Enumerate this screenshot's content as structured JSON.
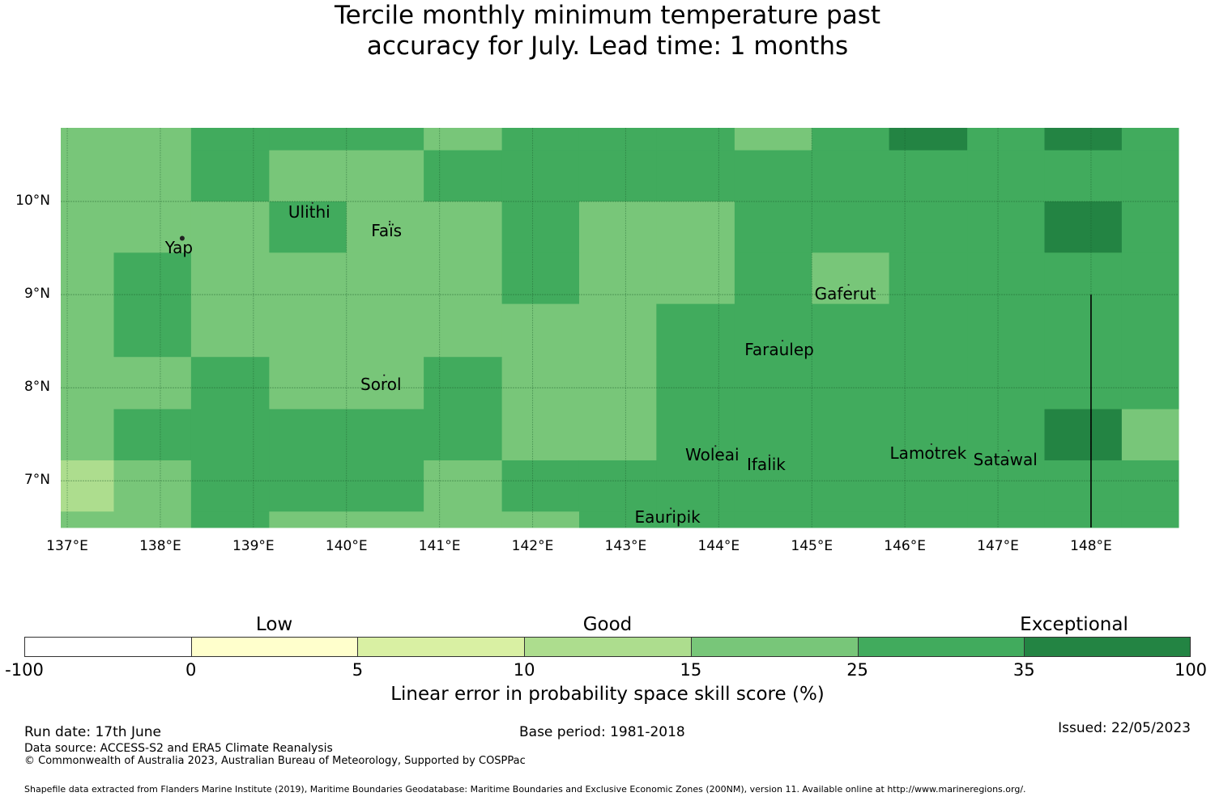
{
  "title": {
    "line1": "Tercile monthly minimum temperature past",
    "line2": "accuracy for July. Lead time: 1 months"
  },
  "map": {
    "lon_range": [
      137,
      149
    ],
    "lat_range": [
      6.5,
      10.8
    ],
    "x_ticks": [
      "137°E",
      "138°E",
      "139°E",
      "140°E",
      "141°E",
      "142°E",
      "143°E",
      "144°E",
      "145°E",
      "146°E",
      "147°E",
      "148°E"
    ],
    "y_ticks": [
      "10°N",
      "9°N",
      "8°N",
      "7°N"
    ],
    "cell_columns_lon_edges": [
      137.0,
      137.5,
      138.33,
      139.17,
      140.0,
      140.83,
      141.67,
      142.5,
      143.33,
      144.17,
      145.0,
      145.83,
      146.67,
      147.5,
      148.33,
      149.0
    ],
    "cell_rows_lat_edges_top_down": [
      10.8,
      10.55,
      10.0,
      9.45,
      8.9,
      8.33,
      7.77,
      7.22,
      6.67,
      6.5
    ],
    "cell_classes_rows_top_down": [
      [
        4,
        4,
        5,
        5,
        5,
        4,
        5,
        5,
        5,
        4,
        5,
        6,
        5,
        6,
        5
      ],
      [
        4,
        4,
        5,
        4,
        4,
        5,
        5,
        5,
        5,
        5,
        5,
        5,
        5,
        5,
        5
      ],
      [
        4,
        4,
        4,
        5,
        4,
        4,
        5,
        4,
        4,
        5,
        5,
        5,
        5,
        6,
        5
      ],
      [
        4,
        5,
        4,
        4,
        4,
        4,
        5,
        4,
        4,
        5,
        4,
        5,
        5,
        5,
        5
      ],
      [
        4,
        5,
        4,
        4,
        4,
        4,
        4,
        4,
        5,
        5,
        5,
        5,
        5,
        5,
        5
      ],
      [
        4,
        4,
        5,
        4,
        4,
        5,
        4,
        4,
        5,
        5,
        5,
        5,
        5,
        5,
        5
      ],
      [
        4,
        5,
        5,
        5,
        5,
        5,
        4,
        4,
        5,
        5,
        5,
        5,
        5,
        6,
        4
      ],
      [
        3,
        4,
        5,
        5,
        5,
        4,
        5,
        5,
        5,
        5,
        5,
        5,
        5,
        5,
        5
      ],
      [
        4,
        4,
        5,
        4,
        4,
        4,
        4,
        5,
        5,
        5,
        5,
        5,
        5,
        5,
        5
      ]
    ],
    "islands": [
      {
        "name": "Ulithi",
        "lon": 139.6,
        "lat": 9.88
      },
      {
        "name": "Faïs",
        "lon": 140.43,
        "lat": 9.68
      },
      {
        "name": "Yap",
        "lon": 138.2,
        "lat": 9.5
      },
      {
        "name": "Gaferut",
        "lon": 145.36,
        "lat": 9.0
      },
      {
        "name": "Faraulep",
        "lon": 144.65,
        "lat": 8.4
      },
      {
        "name": "Sorol",
        "lon": 140.37,
        "lat": 8.03
      },
      {
        "name": "Woleai",
        "lon": 143.93,
        "lat": 7.27
      },
      {
        "name": "Ifalik",
        "lon": 144.51,
        "lat": 7.17
      },
      {
        "name": "Lamotrek",
        "lon": 146.25,
        "lat": 7.29
      },
      {
        "name": "Satawal",
        "lon": 147.08,
        "lat": 7.22
      },
      {
        "name": "Eauripik",
        "lon": 143.45,
        "lat": 6.6
      }
    ],
    "boundary_line_lon": 148.0,
    "boundary_line_lat_range": [
      6.5,
      9.0
    ]
  },
  "colorbar": {
    "categories": [
      {
        "label": "Low",
        "center_value": "0-5"
      },
      {
        "label": "Good",
        "center_value": "10-15"
      },
      {
        "label": "Exceptional",
        "center_value": "35-100"
      }
    ],
    "bins": [
      {
        "from": "-100",
        "to": "0",
        "color": "#ffffff"
      },
      {
        "from": "0",
        "to": "5",
        "color": "#ffffcc"
      },
      {
        "from": "5",
        "to": "10",
        "color": "#d9f0a3"
      },
      {
        "from": "10",
        "to": "15",
        "color": "#addd8e"
      },
      {
        "from": "15",
        "to": "25",
        "color": "#78c679"
      },
      {
        "from": "25",
        "to": "35",
        "color": "#41ab5d"
      },
      {
        "from": "35",
        "to": "100",
        "color": "#238443"
      }
    ],
    "ticks": [
      "-100",
      "0",
      "5",
      "10",
      "15",
      "25",
      "35",
      "100"
    ],
    "label": "Linear error in probability space skill score (%)"
  },
  "footer": {
    "run_date": "Run date: 17th June",
    "base_period": "Base period: 1981-2018",
    "issued": "Issued: 22/05/2023",
    "data_source": "Data source: ACCESS-S2 and ERA5 Climate Reanalysis",
    "copyright": "© Commonwealth of Australia 2023, Australian Bureau of Meteorology, Supported by COSPPac",
    "shapefile": "Shapefile data extracted from Flanders Marine Institute (2019), Maritime Boundaries Geodatabase: Maritime Boundaries and Exclusive Economic Zones (200NM), version 11. Available online at http://www.marineregions.org/."
  }
}
